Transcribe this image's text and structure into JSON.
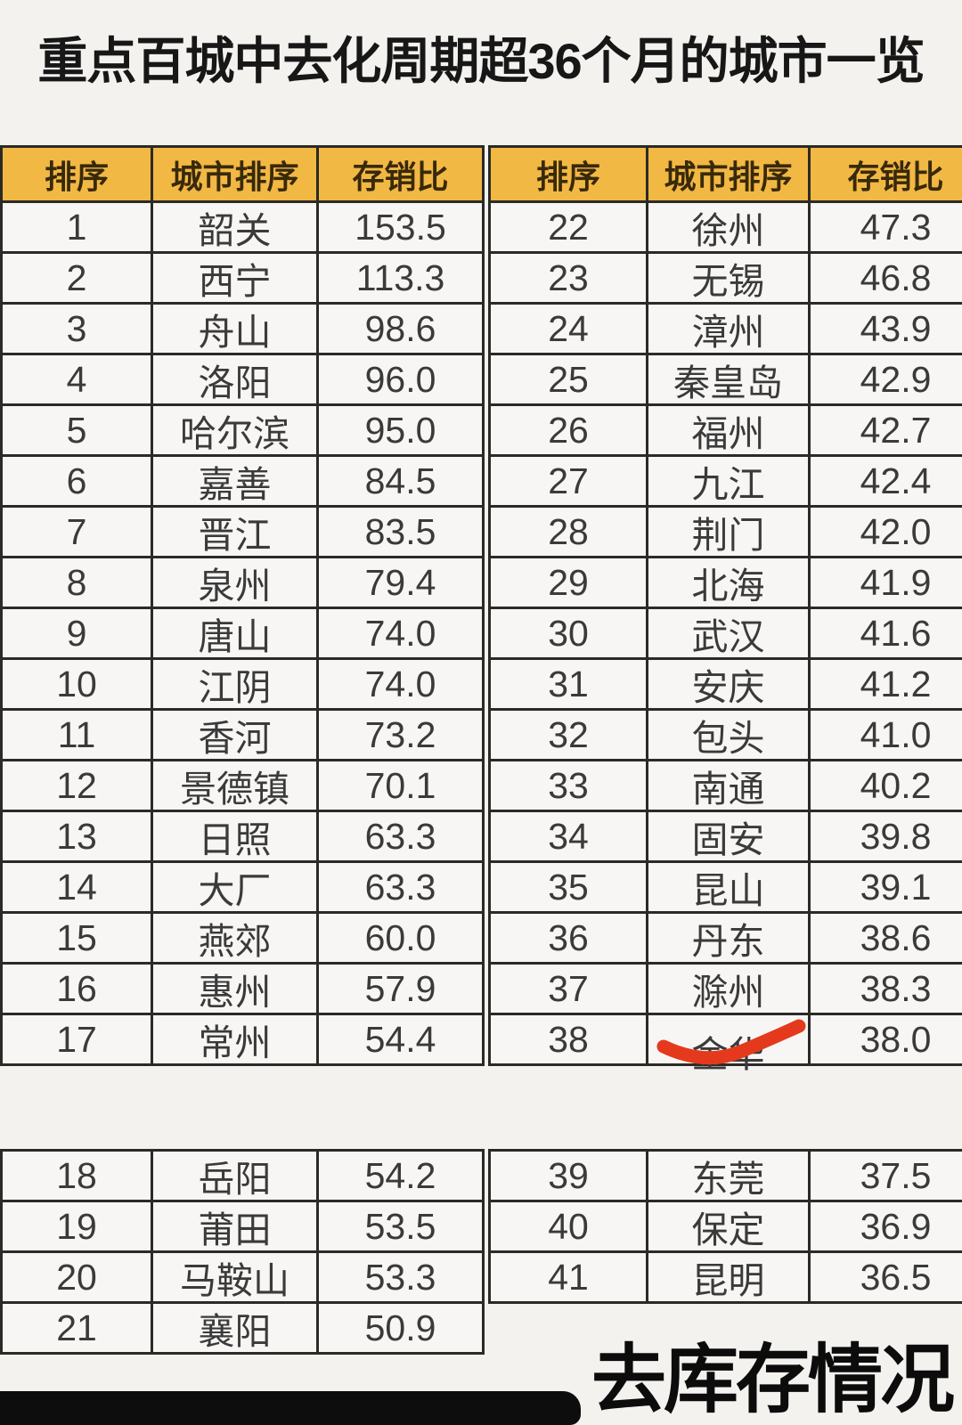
{
  "title": "重点百城中去化周期超36个月的城市一览",
  "footer": {
    "label": "去库存情况"
  },
  "colors": {
    "header_bg": "#f2b844",
    "border": "#2b2a26",
    "page_bg": "#f3f2ef",
    "red_mark": "#e5391d",
    "footer_bar": "#0d0d0d"
  },
  "annotations": {
    "red_mark_note": "hand-drawn red stroke across city name of rank 38 (金华)"
  },
  "chart_data": {
    "type": "table",
    "title": "重点百城中去化周期超36个月的城市一览",
    "columns": [
      "排序",
      "城市排序",
      "存销比"
    ],
    "sections": {
      "upper_left": [
        [
          "1",
          "韶关",
          "153.5"
        ],
        [
          "2",
          "西宁",
          "113.3"
        ],
        [
          "3",
          "舟山",
          "98.6"
        ],
        [
          "4",
          "洛阳",
          "96.0"
        ],
        [
          "5",
          "哈尔滨",
          "95.0"
        ],
        [
          "6",
          "嘉善",
          "84.5"
        ],
        [
          "7",
          "晋江",
          "83.5"
        ],
        [
          "8",
          "泉州",
          "79.4"
        ],
        [
          "9",
          "唐山",
          "74.0"
        ],
        [
          "10",
          "江阴",
          "74.0"
        ],
        [
          "11",
          "香河",
          "73.2"
        ],
        [
          "12",
          "景德镇",
          "70.1"
        ],
        [
          "13",
          "日照",
          "63.3"
        ],
        [
          "14",
          "大厂",
          "63.3"
        ],
        [
          "15",
          "燕郊",
          "60.0"
        ],
        [
          "16",
          "惠州",
          "57.9"
        ],
        [
          "17",
          "常州",
          "54.4"
        ]
      ],
      "upper_right": [
        [
          "22",
          "徐州",
          "47.3"
        ],
        [
          "23",
          "无锡",
          "46.8"
        ],
        [
          "24",
          "漳州",
          "43.9"
        ],
        [
          "25",
          "秦皇岛",
          "42.9"
        ],
        [
          "26",
          "福州",
          "42.7"
        ],
        [
          "27",
          "九江",
          "42.4"
        ],
        [
          "28",
          "荆门",
          "42.0"
        ],
        [
          "29",
          "北海",
          "41.9"
        ],
        [
          "30",
          "武汉",
          "41.6"
        ],
        [
          "31",
          "安庆",
          "41.2"
        ],
        [
          "32",
          "包头",
          "41.0"
        ],
        [
          "33",
          "南通",
          "40.2"
        ],
        [
          "34",
          "固安",
          "39.8"
        ],
        [
          "35",
          "昆山",
          "39.1"
        ],
        [
          "36",
          "丹东",
          "38.6"
        ],
        [
          "37",
          "滁州",
          "38.3"
        ],
        [
          "38",
          "金华",
          "38.0"
        ]
      ],
      "lower_left": [
        [
          "18",
          "岳阳",
          "54.2"
        ],
        [
          "19",
          "莆田",
          "53.5"
        ],
        [
          "20",
          "马鞍山",
          "53.3"
        ],
        [
          "21",
          "襄阳",
          "50.9"
        ]
      ],
      "lower_right": [
        [
          "39",
          "东莞",
          "37.5"
        ],
        [
          "40",
          "保定",
          "36.9"
        ],
        [
          "41",
          "昆明",
          "36.5"
        ]
      ]
    }
  }
}
